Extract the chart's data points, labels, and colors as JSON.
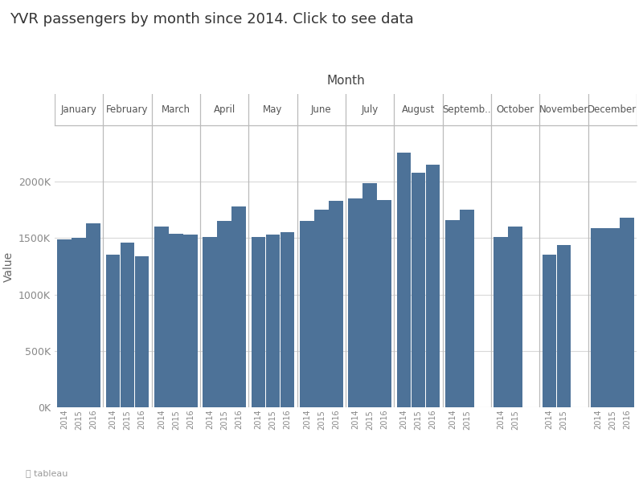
{
  "title": "YVR passengers by month since 2014. Click to see data",
  "xlabel": "Month",
  "ylabel": "Value",
  "bar_color": "#4d7298",
  "background_color": "#ffffff",
  "plot_bg_color": "#ffffff",
  "grid_color": "#d8d8d8",
  "months": [
    "January",
    "February",
    "March",
    "April",
    "May",
    "June",
    "July",
    "August",
    "Septemb..",
    "October",
    "November",
    "December"
  ],
  "years": [
    "2014",
    "2015",
    "2016"
  ],
  "values": {
    "January": [
      1490000,
      1500000,
      1630000
    ],
    "February": [
      1350000,
      1460000,
      1340000
    ],
    "March": [
      1600000,
      1540000,
      1530000
    ],
    "April": [
      1510000,
      1650000,
      1780000
    ],
    "May": [
      1510000,
      1530000,
      1550000
    ],
    "June": [
      1650000,
      1750000,
      1830000
    ],
    "July": [
      1850000,
      1990000,
      1840000
    ],
    "August": [
      2260000,
      2080000,
      2150000
    ],
    "Septemb..": [
      1660000,
      1750000,
      null
    ],
    "October": [
      1510000,
      1600000,
      null
    ],
    "November": [
      1350000,
      1440000,
      null
    ],
    "December": [
      1590000,
      1590000,
      1680000
    ]
  },
  "ylim": [
    0,
    2500000
  ],
  "yticks": [
    0,
    500000,
    1000000,
    1500000,
    2000000
  ],
  "ytick_labels": [
    "0K",
    "500K",
    "1000K",
    "1500K",
    "2000K"
  ],
  "tableau_text": "tableau"
}
